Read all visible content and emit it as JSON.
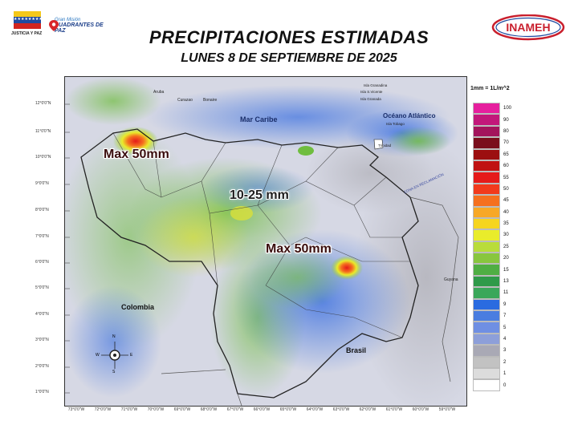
{
  "header": {
    "title": "PRECIPITACIONES ESTIMADAS",
    "subtitle": "LUNES 8 DE SEPTIEMBRE DE 2025",
    "logo_left_caption": "JUSTICIA Y PAZ",
    "logo_mid_line1": "Gran Misión",
    "logo_mid_line2": "CUADRANTES DE PAZ",
    "logo_right_text": "INAMEH"
  },
  "map": {
    "labels": {
      "mar_caribe": "Mar Caribe",
      "oceano": "Océano Atlántico",
      "colombia": "Colombia",
      "brasil": "Brasil",
      "guyana": "Guyana",
      "aruba": "Aruba",
      "curazao": "Curazao",
      "bonaire": "Bonaire",
      "granada_top": "Isla Granadina",
      "san_vicente": "Isla S.Vicente",
      "granada": "Isla Granada",
      "tobago": "Isla Tobago",
      "trinidad": "Trinidad",
      "zona": "ZONA EN RECLAMACIÓN",
      "max_west": "Max 50mm",
      "center": "10-25 mm",
      "max_south": "Max 50mm"
    },
    "compass": {
      "n": "N",
      "s": "S",
      "e": "E",
      "w": "W"
    },
    "lat_ticks": [
      "12°0'0\"N",
      "11°0'0\"N",
      "10°0'0\"N",
      "9°0'0\"N",
      "8°0'0\"N",
      "7°0'0\"N",
      "6°0'0\"N",
      "5°0'0\"N",
      "4°0'0\"N",
      "3°0'0\"N",
      "2°0'0\"N",
      "1°0'0\"N"
    ],
    "lon_ticks": [
      "73°0'0\"W",
      "72°0'0\"W",
      "71°0'0\"W",
      "70°0'0\"W",
      "69°0'0\"W",
      "68°0'0\"W",
      "67°0'0\"W",
      "66°0'0\"W",
      "65°0'0\"W",
      "64°0'0\"W",
      "63°0'0\"W",
      "62°0'0\"W",
      "61°0'0\"W",
      "60°0'0\"W",
      "59°0'0\"W"
    ]
  },
  "legend": {
    "title": "1mm = 1L/m^2",
    "items": [
      {
        "value": "100",
        "color": "#e61f9e"
      },
      {
        "value": "90",
        "color": "#c2177a"
      },
      {
        "value": "80",
        "color": "#a3145c"
      },
      {
        "value": "70",
        "color": "#7a0e1c"
      },
      {
        "value": "65",
        "color": "#9c0f10"
      },
      {
        "value": "60",
        "color": "#c01212"
      },
      {
        "value": "55",
        "color": "#e51a1a"
      },
      {
        "value": "50",
        "color": "#f23a1c"
      },
      {
        "value": "45",
        "color": "#f5701f"
      },
      {
        "value": "40",
        "color": "#f7a826"
      },
      {
        "value": "35",
        "color": "#f6d51e"
      },
      {
        "value": "30",
        "color": "#e9ec2b"
      },
      {
        "value": "25",
        "color": "#b9dc3a"
      },
      {
        "value": "20",
        "color": "#88c63e"
      },
      {
        "value": "15",
        "color": "#4fae43"
      },
      {
        "value": "13",
        "color": "#2f9a49"
      },
      {
        "value": "11",
        "color": "#3aa75a"
      },
      {
        "value": "9",
        "color": "#2a6be0"
      },
      {
        "value": "7",
        "color": "#4a7de0"
      },
      {
        "value": "5",
        "color": "#6f8fe3"
      },
      {
        "value": "4",
        "color": "#8d9fd9"
      },
      {
        "value": "3",
        "color": "#a9a9b5"
      },
      {
        "value": "2",
        "color": "#c2c2c2"
      },
      {
        "value": "1",
        "color": "#dcdcdc"
      },
      {
        "value": "0",
        "color": "#ffffff"
      }
    ]
  }
}
